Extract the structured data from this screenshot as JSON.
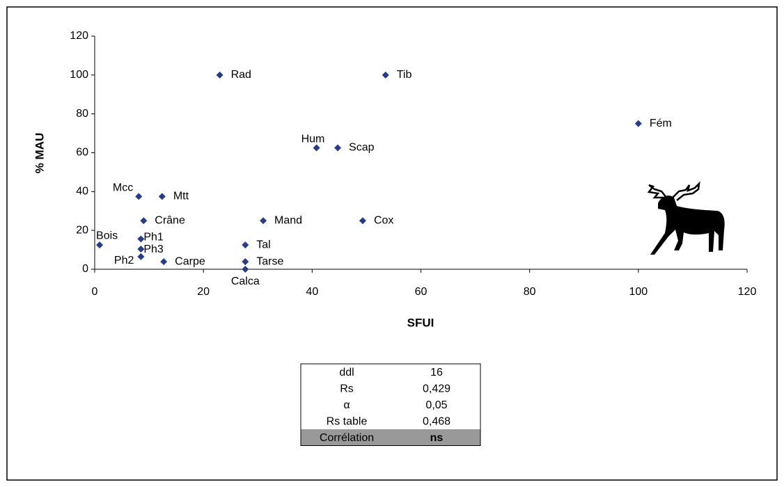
{
  "chart_data": {
    "type": "scatter",
    "x_label": "SFUI",
    "y_label": "% MAU",
    "labels": [
      "Rad",
      "Tib",
      "Fém",
      "Hum",
      "Scap",
      "Mcc",
      "Mtt",
      "Crâne",
      "Mand",
      "Cox",
      "Bois",
      "Ph1",
      "Ph3",
      "Ph2",
      "Carpe",
      "Tal",
      "Tarse",
      "Calca"
    ],
    "x": [
      23.0,
      53.5,
      100,
      40.8,
      44.7,
      8.1,
      12.4,
      9.0,
      31.0,
      49.3,
      0.9,
      8.5,
      8.5,
      8.5,
      12.7,
      27.7,
      27.7,
      27.7
    ],
    "values": [
      100,
      100,
      75,
      62.5,
      62.5,
      37.5,
      37.5,
      25,
      25,
      25,
      12.5,
      15.6,
      10.4,
      6.5,
      3.9,
      12.5,
      3.9,
      0
    ],
    "color": "#283a8a",
    "xlim": [
      0,
      120
    ],
    "ylim": [
      0,
      120
    ],
    "xticks": [
      0,
      20,
      40,
      60,
      80,
      100,
      120
    ],
    "yticks": [
      0,
      20,
      40,
      60,
      80,
      100,
      120
    ]
  },
  "table": {
    "rows": [
      [
        "ddl",
        "16"
      ],
      [
        "Rs",
        "0,429"
      ],
      [
        "α",
        "0,05"
      ],
      [
        "Rs table",
        "0,468"
      ],
      [
        "Corrélation",
        "ns"
      ]
    ]
  }
}
